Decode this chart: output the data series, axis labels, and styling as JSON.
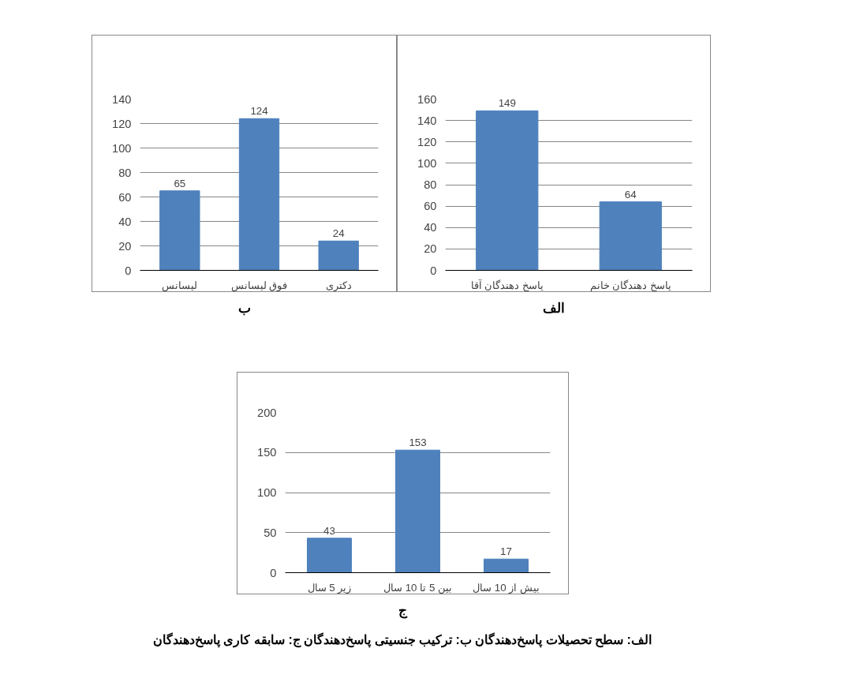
{
  "chart_data": [
    {
      "type": "bar",
      "categories": [
        "لیسانس",
        "فوق لیسانس",
        "دکتری"
      ],
      "values": [
        65,
        124,
        24
      ],
      "color": "#4f81bd",
      "ylim": [
        0,
        140
      ],
      "yticks": [
        0,
        20,
        40,
        60,
        80,
        100,
        120,
        140
      ],
      "grid": "y",
      "data_labels": true,
      "annotations": [
        "ب"
      ]
    },
    {
      "type": "bar",
      "categories": [
        "پاسخ دهندگان آقا",
        "پاسخ دهندگان خانم"
      ],
      "values": [
        149,
        64
      ],
      "color": "#4f81bd",
      "ylim": [
        0,
        160
      ],
      "yticks": [
        0,
        20,
        40,
        60,
        80,
        100,
        120,
        140,
        160
      ],
      "grid": "y",
      "data_labels": true,
      "annotations": [
        "الف"
      ]
    },
    {
      "type": "bar",
      "categories": [
        "زیر 5 سال",
        "بین 5 تا 10 سال",
        "بیش از 10 سال"
      ],
      "values": [
        43,
        153,
        17
      ],
      "color": "#4f81bd",
      "ylim": [
        0,
        200
      ],
      "yticks": [
        0,
        50,
        100,
        150,
        200
      ],
      "grid": "y",
      "data_labels": true,
      "annotations": [
        "ج",
        "الف: سطح تحصیلات پاسخ‌دهندگان ب: ترکیب جنسیتی پاسخ‌دهندگان ج: سابقه کاری پاسخ‌دهندگان"
      ]
    }
  ]
}
